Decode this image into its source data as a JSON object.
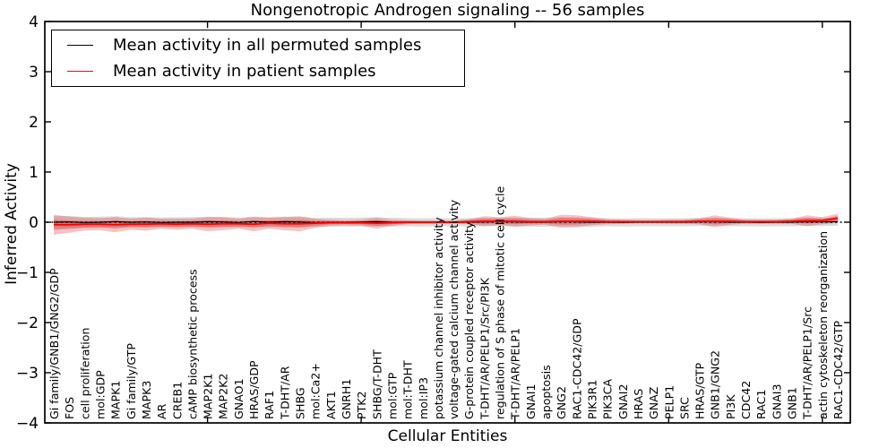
{
  "chart_data": {
    "type": "line",
    "title": "Nongenotropic Androgen signaling -- 56 samples",
    "xlabel": "Cellular Entities",
    "ylabel": "Inferred Activity",
    "ylim": [
      -4,
      4
    ],
    "ytick_values": [
      4,
      3,
      2,
      1,
      0,
      -1,
      -2,
      -3,
      -4
    ],
    "ytick_labels": [
      "4",
      "3",
      "2",
      "1",
      "0",
      "−1",
      "−2",
      "−3",
      "−4"
    ],
    "xtick_positions": [
      10,
      20,
      30,
      40,
      50
    ],
    "grid": false,
    "legend_position": "upper left",
    "categories": [
      "Gi family/GNB1/GNG2/GDP",
      "FOS",
      "cell proliferation",
      "mol:GDP",
      "MAPK1",
      "Gi family/GTP",
      "MAPK3",
      "AR",
      "CREB1",
      "cAMP biosynthetic process",
      "MAP2K1",
      "MAP2K2",
      "GNAO1",
      "HRAS/GDP",
      "RAF1",
      "T-DHT/AR",
      "SHBG",
      "mol:Ca2+",
      "AKT1",
      "GNRH1",
      "PTK2",
      "SHBG/T-DHT",
      "mol:GTP",
      "mol:T-DHT",
      "mol:IP3",
      "potassium channel inhibitor activity",
      "voltage-gated calcium channel activity",
      "G-protein coupled receptor activity",
      "T-DHT/AR/PELP1/Src/PI3K",
      "regulation of S phase of mitotic cell cycle",
      "T-DHT/AR/PELP1",
      "GNAI1",
      "apoptosis",
      "GNG2",
      "RAC1-CDC42/GDP",
      "PIK3R1",
      "PIK3CA",
      "GNAI2",
      "HRAS",
      "GNAZ",
      "PELP1",
      "SRC",
      "HRAS/GTP",
      "GNB1/GNG2",
      "PI3K",
      "CDC42",
      "RAC1",
      "GNAI3",
      "GNB1",
      "T-DHT/AR/PELP1/Src",
      "actin cytoskeleton reorganization",
      "RAC1-CDC42/GTP"
    ],
    "series": [
      {
        "name": "Mean activity in all permuted samples",
        "color": "#000000",
        "style": "solid",
        "values": [
          0,
          0.005,
          -0.005,
          0,
          0.01,
          0,
          0.005,
          -0.005,
          0,
          0,
          0.01,
          0.005,
          -0.005,
          0.015,
          0,
          0.01,
          0.005,
          -0.005,
          0,
          0,
          0.005,
          0.01,
          0,
          0,
          -0.005,
          0,
          0,
          0,
          0.005,
          0.01,
          0.005,
          0,
          0,
          0.01,
          0.005,
          0,
          0,
          -0.005,
          0,
          0,
          0,
          0,
          0.005,
          0.01,
          0,
          0,
          -0.005,
          0,
          0,
          0.01,
          0.005,
          0.01
        ]
      },
      {
        "name": "Mean activity in patient samples",
        "color": "#ff0000",
        "style": "solid",
        "values": [
          -0.05,
          -0.05,
          -0.04,
          -0.04,
          -0.05,
          -0.04,
          -0.04,
          -0.03,
          -0.04,
          -0.03,
          -0.04,
          -0.03,
          -0.03,
          -0.04,
          -0.02,
          -0.03,
          -0.03,
          -0.02,
          -0.01,
          -0.01,
          -0.01,
          -0.02,
          -0.01,
          0,
          0,
          0,
          0,
          0.01,
          0.02,
          0.02,
          0.02,
          0.01,
          0.01,
          0.02,
          0.02,
          0.02,
          0.01,
          0.01,
          0.01,
          0.01,
          0.01,
          0.01,
          0.02,
          0.02,
          0.02,
          0.01,
          0.01,
          0.01,
          0.02,
          0.03,
          0.03,
          0.08
        ]
      }
    ],
    "bands": [
      {
        "name": "permuted samples spread",
        "color": "#999999",
        "alpha": 0.35,
        "follows_series": 0,
        "halfwidths": [
          0.12,
          0.12,
          0.11,
          0.11,
          0.11,
          0.1,
          0.1,
          0.1,
          0.1,
          0.1,
          0.1,
          0.1,
          0.1,
          0.1,
          0.1,
          0.1,
          0.1,
          0.09,
          0.09,
          0.09,
          0.09,
          0.09,
          0.09,
          0.08,
          0.08,
          0.08,
          0.08,
          0.08,
          0.08,
          0.08,
          0.09,
          0.09,
          0.09,
          0.09,
          0.09,
          0.09,
          0.08,
          0.08,
          0.08,
          0.08,
          0.08,
          0.08,
          0.08,
          0.08,
          0.08,
          0.08,
          0.08,
          0.08,
          0.08,
          0.08,
          0.08,
          0.08
        ]
      },
      {
        "name": "patient samples spread",
        "color": "#dd2222",
        "alpha": 0.27,
        "follows_series": 1,
        "inner_scale": 0.52,
        "inner_alpha": 0.32,
        "halfwidths": [
          0.2,
          0.16,
          0.13,
          0.12,
          0.15,
          0.11,
          0.13,
          0.1,
          0.11,
          0.1,
          0.14,
          0.13,
          0.1,
          0.14,
          0.11,
          0.13,
          0.15,
          0.09,
          0.06,
          0.05,
          0.06,
          0.11,
          0.06,
          0.04,
          0.03,
          0.03,
          0.03,
          0.05,
          0.1,
          0.08,
          0.11,
          0.07,
          0.06,
          0.13,
          0.12,
          0.08,
          0.05,
          0.04,
          0.03,
          0.03,
          0.04,
          0.04,
          0.06,
          0.12,
          0.07,
          0.04,
          0.04,
          0.04,
          0.05,
          0.11,
          0.07,
          0.09
        ]
      }
    ],
    "zero_line": {
      "style": "dotted",
      "color": "#000000",
      "value": 0
    }
  },
  "legend": {
    "items": [
      {
        "label": "Mean activity in all permuted samples",
        "color": "#000000"
      },
      {
        "label": "Mean activity in patient samples",
        "color": "#ff0000"
      }
    ]
  }
}
